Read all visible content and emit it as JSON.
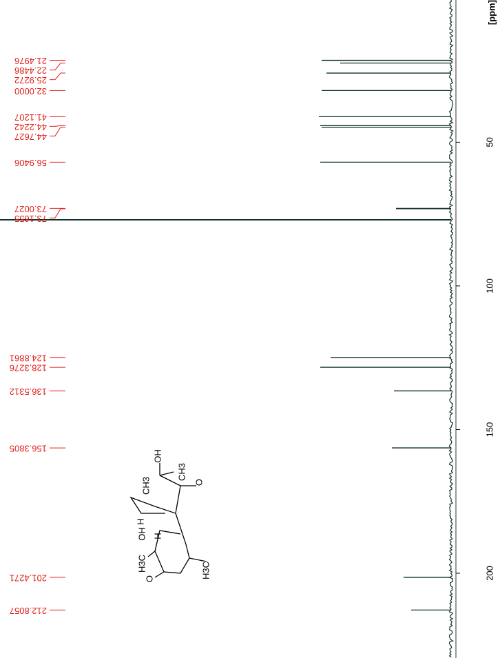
{
  "chart_data": {
    "type": "nmr",
    "axis_label": "[ppm]",
    "x": [
      21.4976,
      22.4486,
      25.9272,
      32.0,
      41.1207,
      44.2242,
      44.7627,
      56.9406,
      73.0027,
      73.1655,
      124.8861,
      128.3276,
      136.5312,
      156.3805,
      201.4271,
      212.8057
    ],
    "peak_labels": [
      "21.4976",
      "22.4486",
      "25.9272",
      "32.0000",
      "41.1207",
      "44.2242",
      "44.7627",
      "56.9406",
      "73.0027",
      "73.1655",
      "124.8861",
      "128.3276",
      "136.5312",
      "156.3805",
      "201.4271",
      "212.8057"
    ],
    "values": [
      188,
      161,
      181,
      188,
      192,
      190,
      188,
      190,
      80,
      80,
      175,
      190,
      83,
      86,
      69,
      58
    ],
    "solvent_peak": {
      "x": 77.0,
      "value": 655
    },
    "xlim": [
      0.5,
      229.5
    ],
    "xticks": [
      50,
      100,
      150,
      200
    ],
    "intensity_lim": [
      0,
      655
    ],
    "color": "#0d2e2a",
    "label_color": "#e0201a",
    "structure_labels": [
      "OH",
      "CH3",
      "CH3",
      "O",
      "H",
      "H",
      "OH",
      "H3C",
      "O",
      "H3C"
    ]
  }
}
